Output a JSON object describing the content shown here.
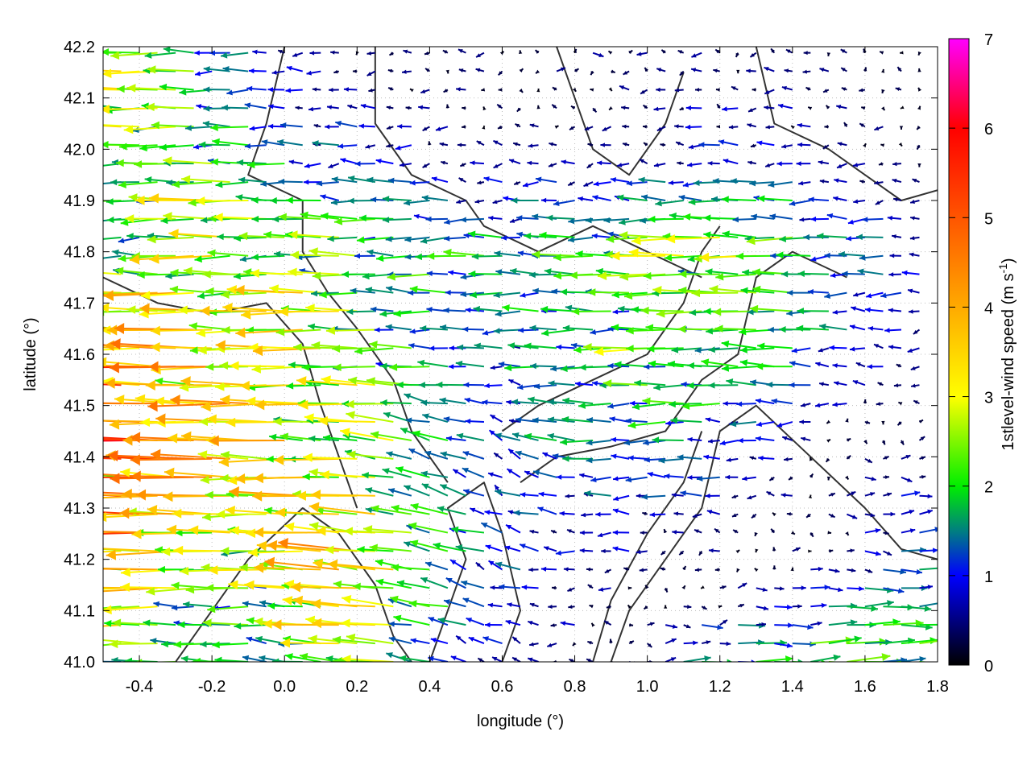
{
  "chart_data": {
    "type": "vector-field",
    "title": "",
    "xlabel": "longitude (°)",
    "ylabel": "latitude (°)",
    "colorbar_label": "1stlevel-wind speed (m s",
    "colorbar_label_sup": "-1",
    "colorbar_label_end": ")",
    "xlim": [
      -0.5,
      1.8
    ],
    "ylim": [
      41.0,
      42.2
    ],
    "clim": [
      0,
      7
    ],
    "grid": true,
    "xticks": [
      "-0.4",
      "-0.2",
      "0.0",
      "0.2",
      "0.4",
      "0.6",
      "0.8",
      "1.0",
      "1.2",
      "1.4",
      "1.6",
      "1.8"
    ],
    "xtick_values": [
      -0.4,
      -0.2,
      0,
      0.2,
      0.4,
      0.6,
      0.8,
      1.0,
      1.2,
      1.4,
      1.6,
      1.8
    ],
    "yticks": [
      "41.0",
      "41.1",
      "41.2",
      "41.3",
      "41.4",
      "41.5",
      "41.6",
      "41.7",
      "41.8",
      "41.9",
      "42.0",
      "42.1",
      "42.2"
    ],
    "ytick_values": [
      41.0,
      41.1,
      41.2,
      41.3,
      41.4,
      41.5,
      41.6,
      41.7,
      41.8,
      41.9,
      42.0,
      42.1,
      42.2
    ],
    "cticks": [
      "0",
      "1",
      "2",
      "3",
      "4",
      "5",
      "6",
      "7"
    ],
    "colormap": [
      {
        "v": 0,
        "c": "#000000"
      },
      {
        "v": 1,
        "c": "#0000ff"
      },
      {
        "v": 1.5,
        "c": "#007f80"
      },
      {
        "v": 2,
        "c": "#00ee00"
      },
      {
        "v": 3,
        "c": "#ffff00"
      },
      {
        "v": 4,
        "c": "#ffaa00"
      },
      {
        "v": 5,
        "c": "#ff5500"
      },
      {
        "v": 6,
        "c": "#ff0000"
      },
      {
        "v": 7,
        "c": "#ff00ff"
      }
    ],
    "wind_grid": {
      "lon": [
        -0.4,
        -0.2,
        0.0,
        0.2,
        0.4,
        0.6,
        0.8,
        1.0,
        1.2,
        1.4,
        1.6,
        1.8
      ],
      "lat": [
        41.0,
        41.2,
        41.4,
        41.6,
        41.8,
        42.0,
        42.2
      ],
      "u": [
        [
          -2,
          -1.5,
          -1.5,
          -2.5,
          -1.5,
          -0.5,
          -0.3,
          0.5,
          1.5,
          2,
          2,
          1.8
        ],
        [
          -3.5,
          -2.5,
          -2.5,
          -3.5,
          -2,
          -1,
          -0.6,
          -0.4,
          -0.3,
          0.2,
          0.8,
          1.2
        ],
        [
          -4.5,
          -3.5,
          -3,
          -3,
          -1.5,
          -0.8,
          -1.2,
          -1.2,
          -1,
          -0.6,
          0.5,
          0.3
        ],
        [
          -4.5,
          -3.5,
          -3,
          -2.2,
          -1.5,
          -1.2,
          -1.5,
          -2,
          -2,
          -1.8,
          -0.8,
          -0.5
        ],
        [
          -1.5,
          -3,
          -2.5,
          -2,
          -1.8,
          -1.5,
          -1.8,
          -2.2,
          -2.3,
          -2,
          -1.2,
          -0.5
        ],
        [
          -2.5,
          -2,
          -1.2,
          -0.8,
          -0.5,
          -0.3,
          -0.4,
          -0.5,
          -0.8,
          -0.6,
          -0.3,
          -0.2
        ],
        [
          -2.5,
          -1.5,
          -0.5,
          -0.3,
          -0.2,
          -0.2,
          0.5,
          -0.3,
          -0.2,
          -0.2,
          -0.1,
          -0.1
        ]
      ],
      "v": [
        [
          0,
          0,
          0.1,
          0.2,
          0.3,
          0.2,
          0,
          0,
          0.1,
          0.1,
          0.1,
          0.1
        ],
        [
          0,
          0,
          0.1,
          0.3,
          0.4,
          0.3,
          0.1,
          0,
          0,
          0,
          0,
          0
        ],
        [
          0.1,
          0.1,
          0,
          0.2,
          0.5,
          0.4,
          0.1,
          0,
          0,
          0,
          0,
          0
        ],
        [
          0.1,
          0,
          0,
          0,
          0.1,
          0,
          0,
          0,
          0.1,
          0,
          0,
          0
        ],
        [
          0,
          0,
          0,
          0.1,
          0,
          0,
          0,
          0,
          0,
          0,
          0,
          0
        ],
        [
          0,
          0,
          0,
          0,
          0,
          0,
          0,
          0,
          0,
          0,
          0,
          0
        ],
        [
          0,
          0,
          0,
          0,
          0,
          0,
          0,
          0,
          0,
          0,
          0,
          0
        ]
      ]
    },
    "contours": [
      [
        [
          -0.5,
          41.75
        ],
        [
          -0.35,
          41.7
        ],
        [
          -0.2,
          41.68
        ],
        [
          -0.05,
          41.7
        ],
        [
          0.05,
          41.62
        ],
        [
          0.1,
          41.5
        ],
        [
          0.15,
          41.4
        ],
        [
          0.2,
          41.3
        ]
      ],
      [
        [
          0.0,
          42.2
        ],
        [
          -0.05,
          42.05
        ],
        [
          -0.1,
          41.95
        ],
        [
          0.05,
          41.9
        ],
        [
          0.05,
          41.8
        ],
        [
          0.12,
          41.72
        ],
        [
          0.2,
          41.65
        ],
        [
          0.3,
          41.55
        ],
        [
          0.35,
          41.45
        ],
        [
          0.45,
          41.35
        ]
      ],
      [
        [
          0.25,
          42.2
        ],
        [
          0.25,
          42.05
        ],
        [
          0.35,
          41.95
        ],
        [
          0.5,
          41.9
        ],
        [
          0.55,
          41.85
        ],
        [
          0.7,
          41.8
        ],
        [
          0.85,
          41.85
        ],
        [
          1.0,
          41.8
        ],
        [
          1.15,
          41.75
        ]
      ],
      [
        [
          0.6,
          41.45
        ],
        [
          0.7,
          41.5
        ],
        [
          0.85,
          41.55
        ],
        [
          1.0,
          41.6
        ],
        [
          1.1,
          41.7
        ],
        [
          1.15,
          41.8
        ],
        [
          1.2,
          41.85
        ]
      ],
      [
        [
          0.65,
          41.35
        ],
        [
          0.75,
          41.4
        ],
        [
          0.9,
          41.42
        ],
        [
          1.05,
          41.45
        ],
        [
          1.15,
          41.55
        ],
        [
          1.25,
          41.6
        ],
        [
          1.3,
          41.75
        ],
        [
          1.4,
          41.8
        ],
        [
          1.55,
          41.75
        ]
      ],
      [
        [
          0.9,
          41.0
        ],
        [
          0.95,
          41.1
        ],
        [
          1.05,
          41.2
        ],
        [
          1.15,
          41.3
        ],
        [
          1.2,
          41.45
        ],
        [
          1.3,
          41.5
        ],
        [
          1.45,
          41.4
        ],
        [
          1.6,
          41.3
        ],
        [
          1.7,
          41.22
        ],
        [
          1.8,
          41.2
        ]
      ],
      [
        [
          0.85,
          41.0
        ],
        [
          0.9,
          41.12
        ],
        [
          1.0,
          41.25
        ],
        [
          1.1,
          41.35
        ],
        [
          1.15,
          41.45
        ]
      ],
      [
        [
          1.3,
          42.2
        ],
        [
          1.35,
          42.05
        ],
        [
          1.5,
          42.0
        ],
        [
          1.6,
          41.95
        ],
        [
          1.7,
          41.9
        ],
        [
          1.8,
          41.92
        ]
      ],
      [
        [
          0.75,
          42.2
        ],
        [
          0.8,
          42.1
        ],
        [
          0.85,
          42.0
        ],
        [
          0.95,
          41.95
        ],
        [
          1.05,
          42.05
        ],
        [
          1.1,
          42.15
        ]
      ],
      [
        [
          0.4,
          41.0
        ],
        [
          0.45,
          41.1
        ],
        [
          0.5,
          41.2
        ],
        [
          0.45,
          41.3
        ],
        [
          0.55,
          41.35
        ],
        [
          0.6,
          41.25
        ],
        [
          0.65,
          41.1
        ],
        [
          0.6,
          41.0
        ]
      ],
      [
        [
          -0.3,
          41.0
        ],
        [
          -0.2,
          41.1
        ],
        [
          -0.1,
          41.2
        ],
        [
          0.05,
          41.3
        ],
        [
          0.15,
          41.25
        ],
        [
          0.25,
          41.15
        ],
        [
          0.3,
          41.05
        ],
        [
          0.35,
          41.0
        ]
      ]
    ]
  }
}
